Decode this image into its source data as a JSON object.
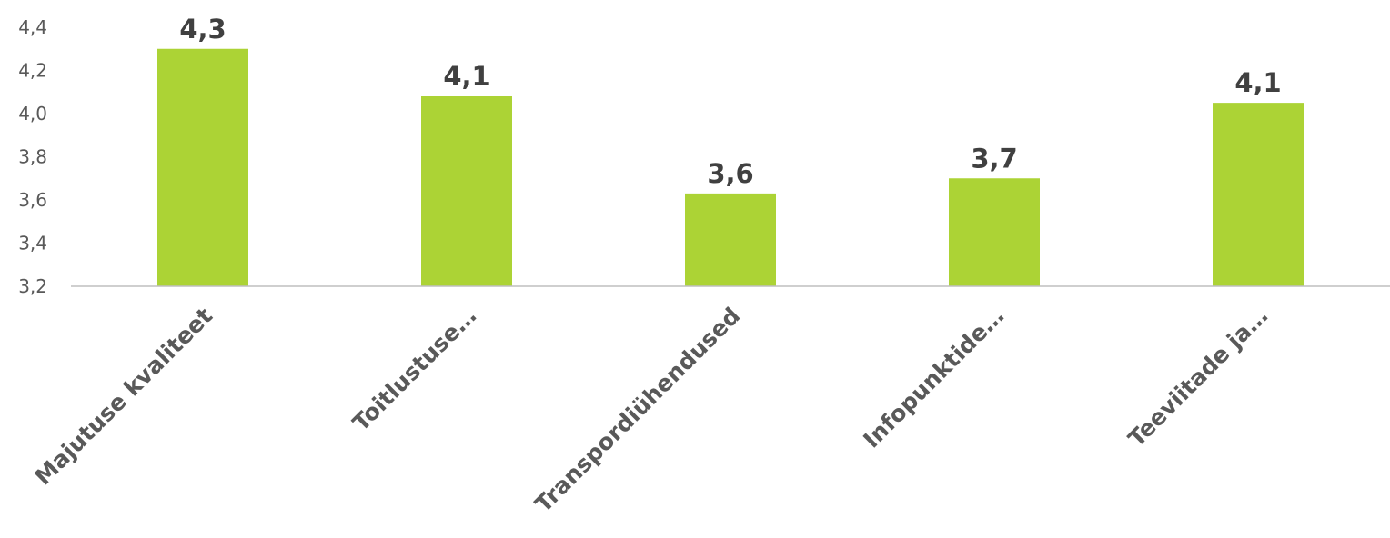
{
  "chart_data": {
    "type": "bar",
    "categories": [
      "Majutuse kvaliteet",
      "Toitlustuse…",
      "Transpordiühendused",
      "Infopunktide…",
      "Teeviitade ja…"
    ],
    "values": [
      4.3,
      4.08,
      3.63,
      3.7,
      4.05
    ],
    "data_labels": [
      "4,3",
      "4,1",
      "3,6",
      "3,7",
      "4,1"
    ],
    "ylim": [
      3.2,
      4.4
    ],
    "yticks": [
      {
        "value": 3.2,
        "label": "3,2"
      },
      {
        "value": 3.4,
        "label": "3,4"
      },
      {
        "value": 3.6,
        "label": "3,6"
      },
      {
        "value": 3.8,
        "label": "3,8"
      },
      {
        "value": 4.0,
        "label": "4,0"
      },
      {
        "value": 4.2,
        "label": "4,2"
      },
      {
        "value": 4.4,
        "label": "4,4"
      }
    ],
    "title": "",
    "xlabel": "",
    "ylabel": "",
    "grid": false,
    "legend": "none",
    "bar_color": "#ACD335",
    "axis_color": "#BFBFBF"
  }
}
